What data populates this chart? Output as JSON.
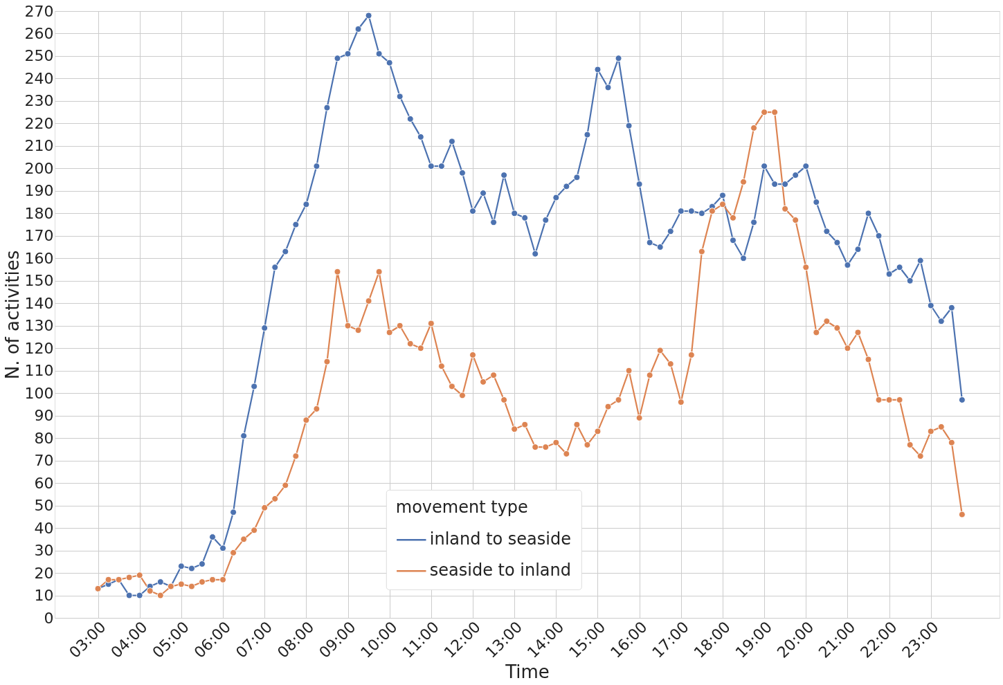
{
  "chart_data": {
    "type": "line",
    "xlabel": "Time",
    "ylabel": "N. of activities",
    "legend_title": "movement type",
    "legend": "bottom",
    "grid": true,
    "marker": "circle",
    "line_style": "solid",
    "x": [
      3,
      3.25,
      3.5,
      3.75,
      4,
      4.25,
      4.5,
      4.75,
      5,
      5.25,
      5.5,
      5.75,
      6,
      6.25,
      6.5,
      6.75,
      7,
      7.25,
      7.5,
      7.75,
      8,
      8.25,
      8.5,
      8.75,
      9,
      9.25,
      9.5,
      9.75,
      10,
      10.25,
      10.5,
      10.75,
      11,
      11.25,
      11.5,
      11.75,
      12,
      12.25,
      12.5,
      12.75,
      13,
      13.25,
      13.5,
      13.75,
      14,
      14.25,
      14.5,
      14.75,
      15,
      15.25,
      15.5,
      15.75,
      16,
      16.25,
      16.5,
      16.75,
      17,
      17.25,
      17.5,
      17.75,
      18,
      18.25,
      18.5,
      18.75,
      19,
      19.25,
      19.5,
      19.75,
      20,
      20.25,
      20.5,
      20.75,
      21,
      21.25,
      21.5,
      21.75,
      22,
      22.25,
      22.5,
      22.75,
      23,
      23.25,
      23.5,
      23.75
    ],
    "xlim": [
      1.96,
      24.65
    ],
    "xticks": [
      {
        "value": 3,
        "label": "03:00"
      },
      {
        "value": 4,
        "label": "04:00"
      },
      {
        "value": 5,
        "label": "05:00"
      },
      {
        "value": 6,
        "label": "06:00"
      },
      {
        "value": 7,
        "label": "07:00"
      },
      {
        "value": 8,
        "label": "08:00"
      },
      {
        "value": 9,
        "label": "09:00"
      },
      {
        "value": 10,
        "label": "10:00"
      },
      {
        "value": 11,
        "label": "11:00"
      },
      {
        "value": 12,
        "label": "12:00"
      },
      {
        "value": 13,
        "label": "13:00"
      },
      {
        "value": 14,
        "label": "14:00"
      },
      {
        "value": 15,
        "label": "15:00"
      },
      {
        "value": 16,
        "label": "16:00"
      },
      {
        "value": 17,
        "label": "17:00"
      },
      {
        "value": 18,
        "label": "18:00"
      },
      {
        "value": 19,
        "label": "19:00"
      },
      {
        "value": 20,
        "label": "20:00"
      },
      {
        "value": 21,
        "label": "21:00"
      },
      {
        "value": 22,
        "label": "22:00"
      },
      {
        "value": 23,
        "label": "23:00"
      }
    ],
    "ylim": [
      0,
      270
    ],
    "yticks": [
      0,
      10,
      20,
      30,
      40,
      50,
      60,
      70,
      80,
      90,
      100,
      110,
      120,
      130,
      140,
      150,
      160,
      170,
      180,
      190,
      200,
      210,
      220,
      230,
      240,
      250,
      260,
      270
    ],
    "series": [
      {
        "name": "inland to seaside",
        "color": "#4c72b0",
        "values": [
          13,
          15,
          17,
          10,
          10,
          14,
          16,
          14,
          23,
          22,
          24,
          36,
          31,
          47,
          81,
          103,
          129,
          156,
          163,
          175,
          184,
          201,
          227,
          249,
          251,
          262,
          268,
          251,
          247,
          232,
          222,
          214,
          201,
          201,
          212,
          198,
          181,
          189,
          176,
          197,
          180,
          178,
          162,
          177,
          187,
          192,
          196,
          215,
          244,
          236,
          249,
          219,
          193,
          167,
          165,
          172,
          181,
          181,
          180,
          183,
          188,
          168,
          160,
          176,
          201,
          193,
          193,
          197,
          201,
          185,
          172,
          167,
          157,
          164,
          180,
          170,
          153,
          156,
          150,
          159,
          139,
          132,
          138,
          97
        ]
      },
      {
        "name": "seaside to inland",
        "color": "#dd8452",
        "values": [
          13,
          17,
          17,
          18,
          19,
          12,
          10,
          14,
          15,
          14,
          16,
          17,
          17,
          29,
          35,
          39,
          49,
          53,
          59,
          72,
          88,
          93,
          114,
          154,
          130,
          128,
          141,
          154,
          127,
          130,
          122,
          120,
          131,
          112,
          103,
          99,
          117,
          105,
          108,
          97,
          84,
          86,
          76,
          76,
          78,
          73,
          86,
          77,
          83,
          94,
          97,
          110,
          89,
          108,
          119,
          113,
          96,
          117,
          163,
          181,
          184,
          178,
          194,
          218,
          225,
          225,
          182,
          177,
          156,
          127,
          132,
          129,
          120,
          127,
          115,
          97,
          97,
          97,
          77,
          72,
          83,
          85,
          78,
          46
        ]
      }
    ]
  }
}
